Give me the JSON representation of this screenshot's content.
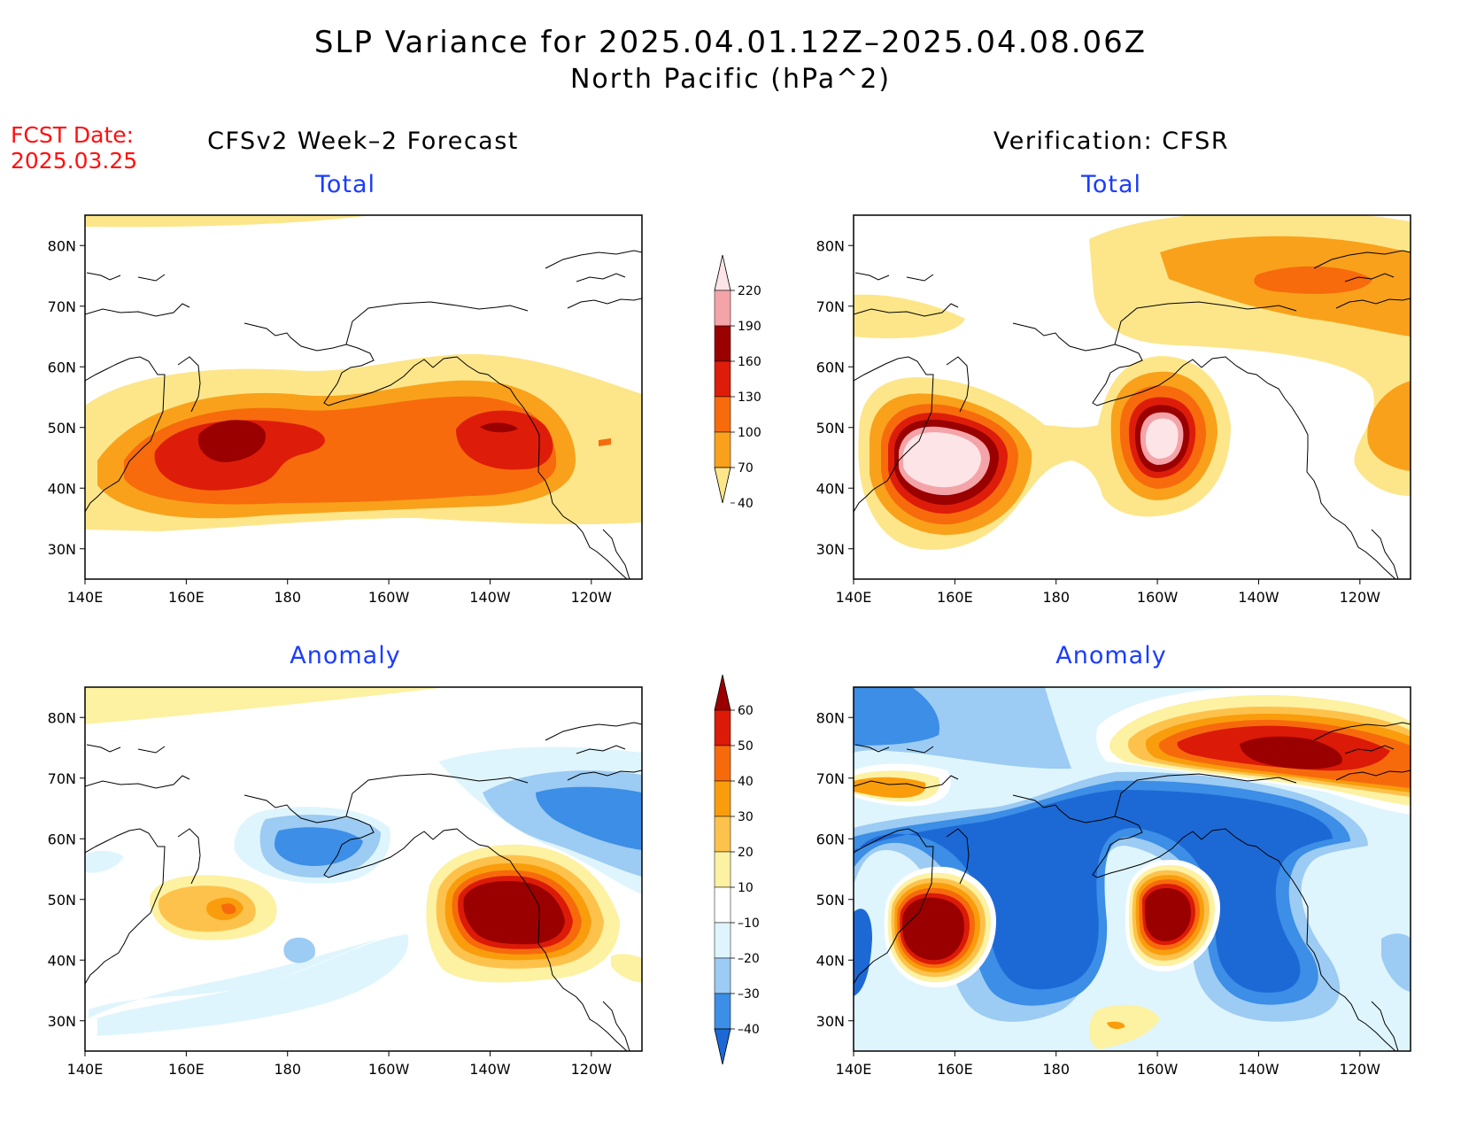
{
  "header": {
    "title": "SLP Variance for 2025.04.01.12Z–2025.04.08.06Z",
    "subtitle": "North Pacific (hPa^2)",
    "fcst_label": "FCST Date:",
    "fcst_date": "2025.03.25"
  },
  "columns": {
    "left": "CFSv2 Week–2 Forecast",
    "right": "Verification: CFSR"
  },
  "panels": [
    {
      "id": "fcst-total",
      "title": "Total"
    },
    {
      "id": "verif-total",
      "title": "Total"
    },
    {
      "id": "fcst-anomaly",
      "title": "Anomaly"
    },
    {
      "id": "verif-anomaly",
      "title": "Anomaly"
    }
  ],
  "axes": {
    "lon_ticks": [
      "140E",
      "160E",
      "180",
      "160W",
      "140W",
      "120W"
    ],
    "lat_ticks": [
      "80N",
      "70N",
      "60N",
      "50N",
      "40N",
      "30N"
    ],
    "lon_range": [
      140,
      250
    ],
    "lat_range": [
      25,
      85
    ]
  },
  "colorbars": {
    "total": {
      "levels": [
        "40",
        "70",
        "100",
        "130",
        "160",
        "190",
        "220"
      ],
      "colors": [
        "#fde68a",
        "#f9a11b",
        "#f76b0c",
        "#dd1d0a",
        "#9a0000",
        "#f4a3a8",
        "#fde4e6"
      ]
    },
    "anomaly": {
      "levels": [
        "–40",
        "–30",
        "–20",
        "–10",
        "10",
        "20",
        "30",
        "40",
        "50",
        "60"
      ],
      "colors": [
        "#1c69d6",
        "#3c8ee6",
        "#9ccbf3",
        "#dff5fd",
        "#ffffff",
        "#fdf1a2",
        "#fdc24c",
        "#f99d0c",
        "#f76a0c",
        "#db1a08",
        "#9a0000"
      ]
    }
  },
  "map_data": {
    "fcst_total": [
      {
        "lon": 165,
        "lat": 48,
        "level": "160-190",
        "peak": "~170"
      },
      {
        "lon": 220,
        "lat": 50,
        "level": "130-160"
      }
    ],
    "verif_total": [
      {
        "lon": 155,
        "lat": 45,
        "level": ">220"
      },
      {
        "lon": 200,
        "lat": 50,
        "level": ">220"
      },
      {
        "lon": 235,
        "lat": 73,
        "level": "130-160"
      }
    ],
    "fcst_anomaly": [
      {
        "lon": 219,
        "lat": 46,
        "level": ">60"
      },
      {
        "lon": 158,
        "lat": 49,
        "level": "40-50"
      },
      {
        "lon": 175,
        "lat": 58,
        "level": "-40 to -30"
      },
      {
        "lon": 240,
        "lat": 64,
        "level": "-40 to -30"
      }
    ],
    "verif_anomaly": [
      {
        "lon": 155,
        "lat": 45,
        "level": ">60"
      },
      {
        "lon": 200,
        "lat": 48,
        "level": ">60"
      },
      {
        "lon": 235,
        "lat": 73,
        "level": "50-60"
      },
      {
        "lon": 185,
        "lat": 50,
        "level": "<-40"
      }
    ]
  }
}
